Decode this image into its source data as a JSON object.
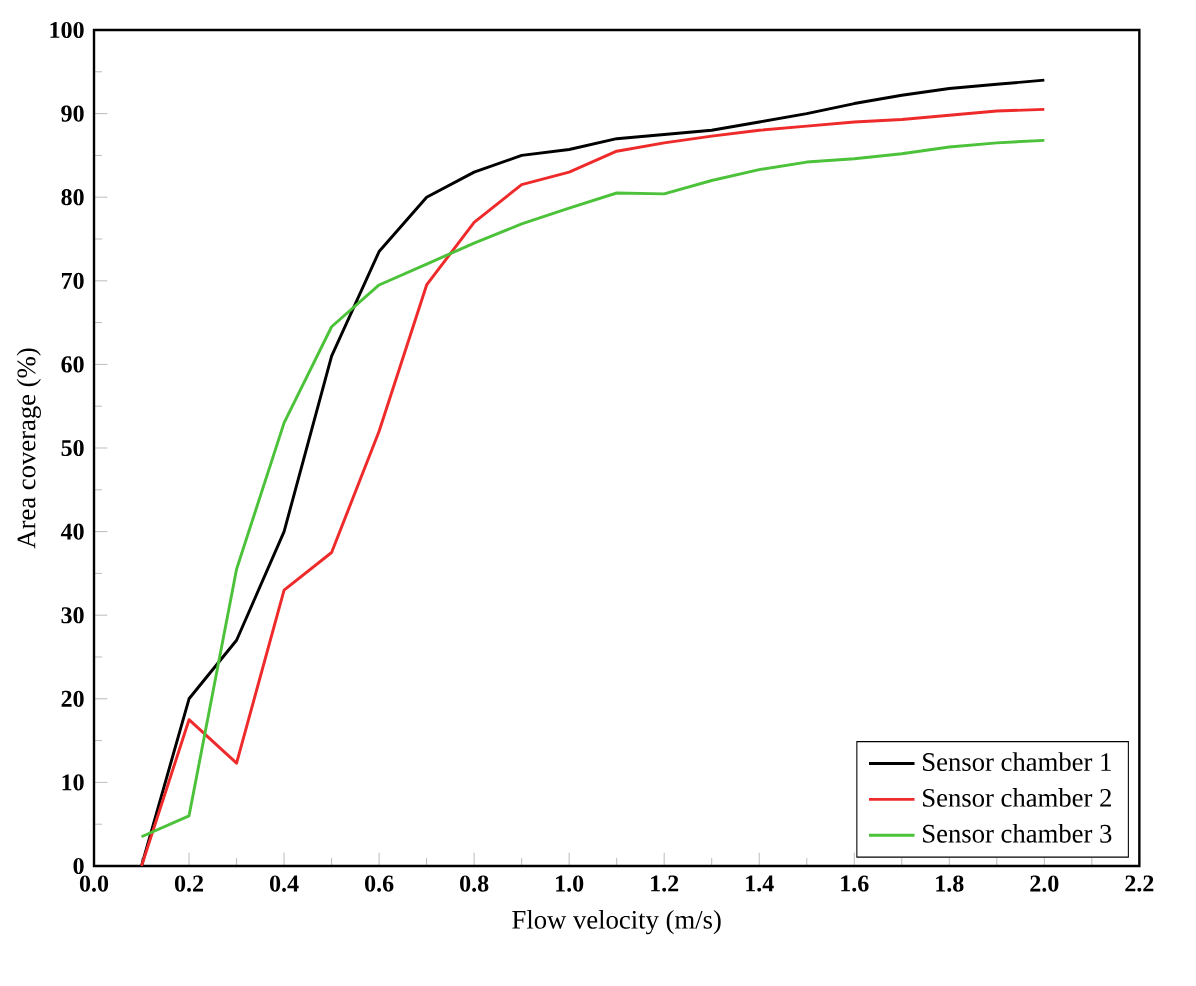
{
  "chart_data": {
    "type": "line",
    "xlabel": "Flow velocity (m/s)",
    "ylabel": "Area coverage (%)",
    "x": [
      0.1,
      0.2,
      0.3,
      0.4,
      0.5,
      0.6,
      0.7,
      0.8,
      0.9,
      1.0,
      1.1,
      1.2,
      1.3,
      1.4,
      1.5,
      1.6,
      1.7,
      1.8,
      1.9,
      2.0
    ],
    "series": [
      {
        "name": "Sensor chamber 1",
        "color": "#000000",
        "values": [
          0,
          20,
          27,
          40,
          61,
          73.5,
          80,
          83,
          85,
          85.7,
          87,
          87.5,
          88,
          89,
          90,
          91.2,
          92.2,
          93,
          93.5,
          94
        ]
      },
      {
        "name": "Sensor chamber 2",
        "color": "#ee2a2a",
        "values": [
          0,
          17.5,
          12.3,
          33,
          37.5,
          52,
          69.5,
          77,
          81.5,
          83,
          85.5,
          86.5,
          87.3,
          88,
          88.5,
          89,
          89.3,
          89.8,
          90.3,
          90.5
        ]
      },
      {
        "name": "Sensor chamber 3",
        "color": "#4cc23a",
        "values": [
          3.5,
          6,
          35.5,
          53,
          64.5,
          69.5,
          72,
          74.5,
          76.8,
          78.7,
          80.5,
          80.4,
          82,
          83.3,
          84.2,
          84.6,
          85.2,
          86,
          86.5,
          86.8
        ]
      }
    ],
    "xlim": [
      0,
      2.2
    ],
    "xticks": [
      {
        "value": 0,
        "label": "0.0"
      },
      {
        "value": 0.2,
        "label": "0.2"
      },
      {
        "value": 0.4,
        "label": "0.4"
      },
      {
        "value": 0.6,
        "label": "0.6"
      },
      {
        "value": 0.8,
        "label": "0.8"
      },
      {
        "value": 1.0,
        "label": "1.0"
      },
      {
        "value": 1.2,
        "label": "1.2"
      },
      {
        "value": 1.4,
        "label": "1.4"
      },
      {
        "value": 1.6,
        "label": "1.6"
      },
      {
        "value": 1.8,
        "label": "1.8"
      },
      {
        "value": 2.0,
        "label": "2.0"
      },
      {
        "value": 2.2,
        "label": "2.2"
      }
    ],
    "ylim": [
      0,
      100
    ],
    "yticks": [
      0,
      10,
      20,
      30,
      40,
      50,
      60,
      70,
      80,
      90,
      100
    ],
    "legend": "bottom right",
    "grid": false,
    "marker": "none",
    "line_style": "solid"
  }
}
